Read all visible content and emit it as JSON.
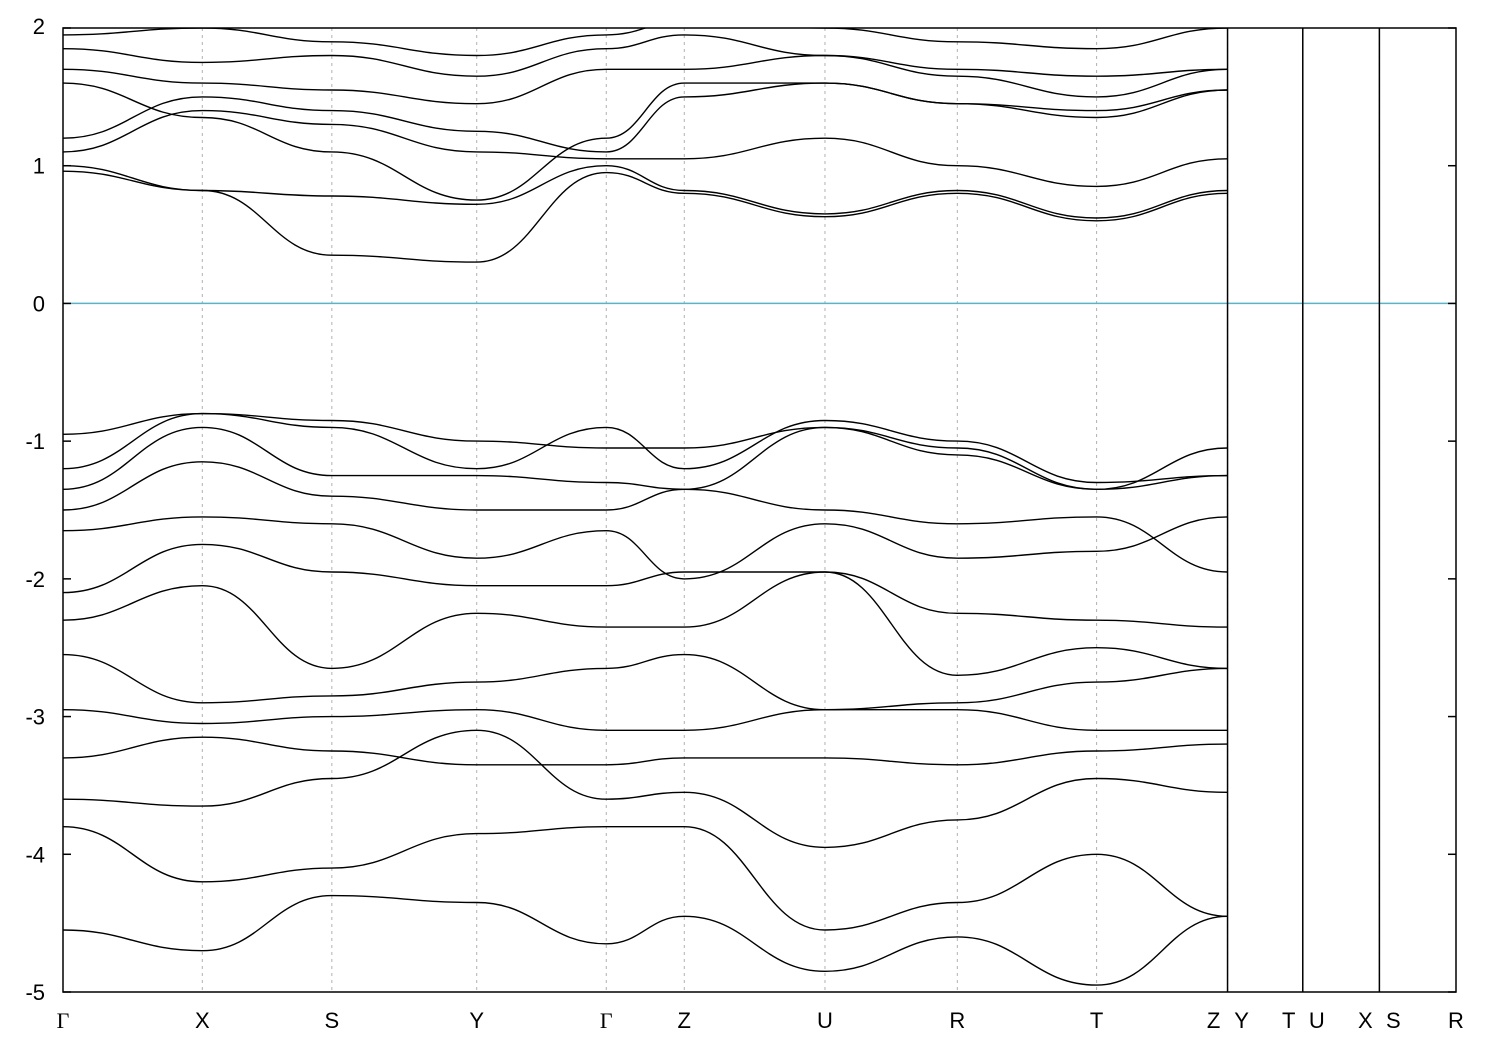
{
  "chart_data": {
    "type": "line",
    "title": "",
    "xlabel": "",
    "ylabel": "",
    "ylim": [
      -5,
      2
    ],
    "grid": "vertical dashed lines at high-symmetry points",
    "y_ticks": [
      {
        "value": 2,
        "label": "2"
      },
      {
        "value": 1,
        "label": "1"
      },
      {
        "value": 0,
        "label": "0"
      },
      {
        "value": -1,
        "label": "-1"
      },
      {
        "value": -2,
        "label": "-2"
      },
      {
        "value": -3,
        "label": "-3"
      },
      {
        "value": -4,
        "label": "-4"
      },
      {
        "value": -5,
        "label": "-5"
      }
    ],
    "k_path_labels": [
      "Γ",
      "X",
      "S",
      "Y",
      "Γ",
      "Z",
      "U",
      "R",
      "T",
      "Z",
      "Y",
      "T",
      "U",
      "X",
      "S",
      "R"
    ],
    "k_path_positions": [
      0,
      1.0,
      1.93,
      2.97,
      3.9,
      4.46,
      5.47,
      6.42,
      7.42,
      8.36,
      8.36,
      8.9,
      8.9,
      9.45,
      9.45,
      10.0
    ],
    "x_range": [
      0,
      10.0
    ],
    "segment_breaks": [
      8.36,
      8.9,
      9.45
    ],
    "fermi_level": {
      "value": 0,
      "color": "#5bb3c9"
    },
    "band_color": "#000000",
    "series": [
      {
        "x": [
          0,
          1.0,
          1.93,
          2.97,
          3.9,
          4.46,
          5.47,
          6.42,
          7.42,
          8.36
        ],
        "values": [
          0.96,
          0.82,
          0.35,
          0.3,
          0.95,
          0.8,
          0.63,
          0.8,
          0.6,
          0.8
        ]
      },
      {
        "x": [
          0,
          1.0,
          1.93,
          2.97,
          3.9,
          4.46,
          5.47,
          6.42,
          7.42,
          8.36
        ],
        "values": [
          1.0,
          0.82,
          0.78,
          0.72,
          1.0,
          0.82,
          0.65,
          0.82,
          0.62,
          0.82
        ]
      },
      {
        "x": [
          0,
          1.0,
          1.93,
          2.97,
          3.9,
          4.46,
          5.47,
          6.42,
          7.42,
          8.36
        ],
        "values": [
          1.1,
          1.4,
          1.3,
          1.1,
          1.05,
          1.05,
          1.2,
          1.0,
          0.85,
          1.05
        ]
      },
      {
        "x": [
          0,
          1.0,
          1.93,
          2.97,
          3.9,
          4.46,
          5.47,
          6.42,
          7.42,
          8.36
        ],
        "values": [
          1.2,
          1.5,
          1.4,
          1.25,
          1.1,
          1.5,
          1.6,
          1.45,
          1.4,
          1.55
        ]
      },
      {
        "x": [
          0,
          1.0,
          1.93,
          2.97,
          3.9,
          4.46,
          5.47,
          6.42,
          7.42,
          8.36
        ],
        "values": [
          1.6,
          1.35,
          1.1,
          0.75,
          1.2,
          1.6,
          1.6,
          1.45,
          1.35,
          1.55
        ]
      },
      {
        "x": [
          0,
          1.0,
          1.93,
          2.97,
          3.9,
          4.46,
          5.47,
          6.42,
          7.42,
          8.36
        ],
        "values": [
          1.7,
          1.6,
          1.55,
          1.45,
          1.7,
          1.7,
          1.8,
          1.65,
          1.5,
          1.7
        ]
      },
      {
        "x": [
          0,
          1.0,
          1.93,
          2.97,
          3.9,
          4.46,
          5.47,
          6.42,
          7.42,
          8.36
        ],
        "values": [
          1.85,
          1.75,
          1.8,
          1.65,
          1.85,
          1.95,
          1.8,
          1.7,
          1.65,
          1.7
        ]
      },
      {
        "x": [
          0,
          1.0,
          1.93,
          2.97,
          3.9,
          4.46,
          5.47,
          6.42,
          7.42,
          8.36
        ],
        "values": [
          1.95,
          2.0,
          1.9,
          1.8,
          1.95,
          2.05,
          2.0,
          1.9,
          1.85,
          2.0
        ]
      },
      {
        "x": [
          0,
          1.0,
          1.93,
          2.97,
          3.9,
          4.46,
          5.47,
          6.42,
          7.42,
          8.36
        ],
        "values": [
          -0.95,
          -0.8,
          -0.85,
          -1.0,
          -1.05,
          -1.05,
          -0.9,
          -1.05,
          -1.35,
          -1.05
        ]
      },
      {
        "x": [
          0,
          1.0,
          1.93,
          2.97,
          3.9,
          4.46,
          5.47,
          6.42,
          7.42,
          8.36
        ],
        "values": [
          -1.2,
          -0.8,
          -0.9,
          -1.2,
          -0.9,
          -1.2,
          -0.85,
          -1.0,
          -1.3,
          -1.25
        ]
      },
      {
        "x": [
          0,
          1.0,
          1.93,
          2.97,
          3.9,
          4.46,
          5.47,
          6.42,
          7.42,
          8.36
        ],
        "values": [
          -1.35,
          -0.9,
          -1.25,
          -1.25,
          -1.3,
          -1.35,
          -0.9,
          -1.1,
          -1.35,
          -1.25
        ]
      },
      {
        "x": [
          0,
          1.0,
          1.93,
          2.97,
          3.9,
          4.46,
          5.47,
          6.42,
          7.42,
          8.36
        ],
        "values": [
          -1.5,
          -1.15,
          -1.4,
          -1.5,
          -1.5,
          -1.35,
          -1.5,
          -1.6,
          -1.55,
          -1.95
        ]
      },
      {
        "x": [
          0,
          1.0,
          1.93,
          2.97,
          3.9,
          4.46,
          5.47,
          6.42,
          7.42,
          8.36
        ],
        "values": [
          -1.65,
          -1.55,
          -1.6,
          -1.85,
          -1.65,
          -2.0,
          -1.6,
          -1.85,
          -1.8,
          -1.55
        ]
      },
      {
        "x": [
          0,
          1.0,
          1.93,
          2.97,
          3.9,
          4.46,
          5.47,
          6.42,
          7.42,
          8.36
        ],
        "values": [
          -2.1,
          -1.75,
          -1.95,
          -2.05,
          -2.05,
          -1.95,
          -1.95,
          -2.25,
          -2.3,
          -2.35
        ]
      },
      {
        "x": [
          0,
          1.0,
          1.93,
          2.97,
          3.9,
          4.46,
          5.47,
          6.42,
          7.42,
          8.36
        ],
        "values": [
          -2.3,
          -2.05,
          -2.65,
          -2.25,
          -2.35,
          -2.35,
          -1.95,
          -2.7,
          -2.5,
          -2.65
        ]
      },
      {
        "x": [
          0,
          1.0,
          1.93,
          2.97,
          3.9,
          4.46,
          5.47,
          6.42,
          7.42,
          8.36
        ],
        "values": [
          -2.55,
          -2.9,
          -2.85,
          -2.75,
          -2.65,
          -2.55,
          -2.95,
          -2.9,
          -2.75,
          -2.65
        ]
      },
      {
        "x": [
          0,
          1.0,
          1.93,
          2.97,
          3.9,
          4.46,
          5.47,
          6.42,
          7.42,
          8.36
        ],
        "values": [
          -2.95,
          -3.05,
          -3.0,
          -2.95,
          -3.1,
          -3.1,
          -2.95,
          -2.95,
          -3.1,
          -3.1
        ]
      },
      {
        "x": [
          0,
          1.0,
          1.93,
          2.97,
          3.9,
          4.46,
          5.47,
          6.42,
          7.42,
          8.36
        ],
        "values": [
          -3.3,
          -3.15,
          -3.25,
          -3.35,
          -3.35,
          -3.3,
          -3.3,
          -3.35,
          -3.25,
          -3.2
        ]
      },
      {
        "x": [
          0,
          1.0,
          1.93,
          2.97,
          3.9,
          4.46,
          5.47,
          6.42,
          7.42,
          8.36
        ],
        "values": [
          -3.6,
          -3.65,
          -3.45,
          -3.1,
          -3.6,
          -3.55,
          -3.95,
          -3.75,
          -3.45,
          -3.55
        ]
      },
      {
        "x": [
          0,
          1.0,
          1.93,
          2.97,
          3.9,
          4.46,
          5.47,
          6.42,
          7.42,
          8.36
        ],
        "values": [
          -3.8,
          -4.2,
          -4.1,
          -3.85,
          -3.8,
          -3.8,
          -4.55,
          -4.35,
          -4.0,
          -4.45
        ]
      },
      {
        "x": [
          0,
          1.0,
          1.93,
          2.97,
          3.9,
          4.46,
          5.47,
          6.42,
          7.42,
          8.36
        ],
        "values": [
          -4.55,
          -4.7,
          -4.3,
          -4.35,
          -4.65,
          -4.45,
          -4.85,
          -4.6,
          -4.95,
          -4.45
        ]
      }
    ]
  }
}
